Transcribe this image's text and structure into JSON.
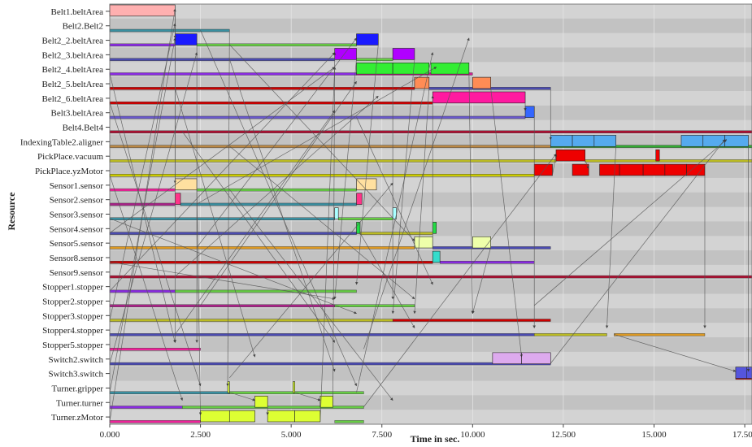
{
  "chart_data": {
    "type": "gantt",
    "xlabel": "Time in sec.",
    "ylabel": "Resource",
    "xlim": [
      0,
      17700
    ],
    "x_ticks": [
      0,
      2500,
      5000,
      7500,
      10000,
      12500,
      15000,
      17500
    ],
    "x_tick_labels": [
      "0.000",
      "2.500",
      "5.000",
      "7.500",
      "10.000",
      "12.500",
      "15.000",
      "17.500"
    ],
    "background": {
      "band_colors": [
        "#d3d3d3",
        "#c2c2c2"
      ],
      "grid": true
    },
    "resources": [
      "Belt1.beltArea",
      "Belt2.Belt2",
      "Belt2_2.beltArea",
      "Belt2_3.beltArea",
      "Belt2_4.beltArea",
      "Belt2_5.beltArea",
      "Belt2_6.beltArea",
      "Belt3.beltArea",
      "Belt4.Belt4",
      "IndexingTable2.aligner",
      "PickPlace.vacuum",
      "PickPlace.yzMotor",
      "Sensor1.sensor",
      "Sensor2.sensor",
      "Sensor3.sensor",
      "Sensor4.sensor",
      "Sensor5.sensor",
      "Sensor8.sensor",
      "Sensor9.sensor",
      "Stopper1.stopper",
      "Stopper2.stopper",
      "Stopper3.stopper",
      "Stopper4.stopper",
      "Stopper5.stopper",
      "Switch2.switch",
      "Switch3.switch",
      "Turner.gripper",
      "Turner.turner",
      "Turner.zMotor"
    ],
    "tasks": [
      {
        "r": 0,
        "s": 0,
        "e": 1800,
        "color": "#ffb0b0"
      },
      {
        "r": 2,
        "s": 1800,
        "e": 2400,
        "color": "#1a1aff"
      },
      {
        "r": 2,
        "s": 6800,
        "e": 7400,
        "color": "#1a1aff"
      },
      {
        "r": 3,
        "s": 6200,
        "e": 6800,
        "color": "#b000ff"
      },
      {
        "r": 3,
        "s": 7800,
        "e": 8400,
        "color": "#b000ff"
      },
      {
        "r": 4,
        "s": 6800,
        "e": 7800,
        "color": "#33ee33"
      },
      {
        "r": 4,
        "s": 7800,
        "e": 8800,
        "color": "#33ee33"
      },
      {
        "r": 4,
        "s": 8850,
        "e": 9900,
        "color": "#33ee33"
      },
      {
        "r": 5,
        "s": 8400,
        "e": 8800,
        "color": "#ff8c55"
      },
      {
        "r": 5,
        "s": 10000,
        "e": 10500,
        "color": "#ff8c55"
      },
      {
        "r": 6,
        "s": 8900,
        "e": 11450,
        "color": "#ff1aa0"
      },
      {
        "r": 7,
        "s": 11450,
        "e": 11700,
        "color": "#3366ff"
      },
      {
        "r": 9,
        "s": 12150,
        "e": 12750,
        "color": "#55aaee"
      },
      {
        "r": 9,
        "s": 12750,
        "e": 13350,
        "color": "#55aaee"
      },
      {
        "r": 9,
        "s": 13350,
        "e": 13950,
        "color": "#55aaee"
      },
      {
        "r": 9,
        "s": 15750,
        "e": 16350,
        "color": "#55aaee"
      },
      {
        "r": 9,
        "s": 16350,
        "e": 16950,
        "color": "#55aaee"
      },
      {
        "r": 9,
        "s": 16950,
        "e": 17600,
        "color": "#55aaee"
      },
      {
        "r": 10,
        "s": 12300,
        "e": 13100,
        "color": "#ee0000"
      },
      {
        "r": 10,
        "s": 15050,
        "e": 15150,
        "color": "#ee0000"
      },
      {
        "r": 11,
        "s": 11700,
        "e": 12200,
        "color": "#ee0000"
      },
      {
        "r": 11,
        "s": 12750,
        "e": 13200,
        "color": "#ee0000"
      },
      {
        "r": 11,
        "s": 13500,
        "e": 14050,
        "color": "#ee0000"
      },
      {
        "r": 11,
        "s": 14050,
        "e": 14700,
        "color": "#ee0000"
      },
      {
        "r": 11,
        "s": 14700,
        "e": 15300,
        "color": "#ee0000"
      },
      {
        "r": 11,
        "s": 15300,
        "e": 15900,
        "color": "#ee0000"
      },
      {
        "r": 11,
        "s": 15900,
        "e": 16400,
        "color": "#ee0000"
      },
      {
        "r": 12,
        "s": 1800,
        "e": 2400,
        "color": "#ffe0a0"
      },
      {
        "r": 12,
        "s": 6800,
        "e": 7350,
        "color": "#ffe0a0"
      },
      {
        "r": 13,
        "s": 1800,
        "e": 1950,
        "color": "#ff3388"
      },
      {
        "r": 13,
        "s": 6800,
        "e": 6950,
        "color": "#ff3388"
      },
      {
        "r": 14,
        "s": 6200,
        "e": 6300,
        "color": "#aaffff"
      },
      {
        "r": 14,
        "s": 7800,
        "e": 7900,
        "color": "#aaffff"
      },
      {
        "r": 15,
        "s": 6800,
        "e": 6900,
        "color": "#22dd44"
      },
      {
        "r": 15,
        "s": 8900,
        "e": 9000,
        "color": "#22dd44"
      },
      {
        "r": 16,
        "s": 8400,
        "e": 8900,
        "color": "#eeffaa"
      },
      {
        "r": 16,
        "s": 10000,
        "e": 10500,
        "color": "#eeffaa"
      },
      {
        "r": 17,
        "s": 8900,
        "e": 9100,
        "color": "#33ddcc"
      },
      {
        "r": 24,
        "s": 10550,
        "e": 11350,
        "color": "#ddaaee"
      },
      {
        "r": 24,
        "s": 11350,
        "e": 12150,
        "color": "#ddaaee"
      },
      {
        "r": 25,
        "s": 17250,
        "e": 17550,
        "color": "#5555dd"
      },
      {
        "r": 25,
        "s": 17550,
        "e": 17700,
        "color": "#5555dd"
      },
      {
        "r": 26,
        "s": 3250,
        "e": 3300,
        "color": "#ddff33"
      },
      {
        "r": 26,
        "s": 5050,
        "e": 5100,
        "color": "#ddff33"
      },
      {
        "r": 27,
        "s": 4000,
        "e": 4350,
        "color": "#ddff33"
      },
      {
        "r": 27,
        "s": 5800,
        "e": 6150,
        "color": "#ddff33"
      },
      {
        "r": 28,
        "s": 2500,
        "e": 3300,
        "color": "#ddff33"
      },
      {
        "r": 28,
        "s": 3300,
        "e": 4000,
        "color": "#ddff33"
      },
      {
        "r": 28,
        "s": 4350,
        "e": 5100,
        "color": "#ddff33"
      },
      {
        "r": 28,
        "s": 5100,
        "e": 5800,
        "color": "#ddff33"
      }
    ],
    "lines": [
      {
        "r": 1,
        "s": 0,
        "e": 3300,
        "color": "#3a8fa0"
      },
      {
        "r": 2,
        "s": 0,
        "e": 1800,
        "color": "#8a2be2"
      },
      {
        "r": 2,
        "s": 2400,
        "e": 6800,
        "color": "#66cc44"
      },
      {
        "r": 3,
        "s": 0,
        "e": 6200,
        "color": "#4b4bb0"
      },
      {
        "r": 3,
        "s": 6800,
        "e": 7800,
        "color": "#66cc44"
      },
      {
        "r": 4,
        "s": 0,
        "e": 6800,
        "color": "#8a2be2"
      },
      {
        "r": 4,
        "s": 6800,
        "e": 10000,
        "color": "#d02090"
      },
      {
        "r": 5,
        "s": 0,
        "e": 8400,
        "color": "#cc0000"
      },
      {
        "r": 5,
        "s": 8800,
        "e": 12150,
        "color": "#4b4bb0"
      },
      {
        "r": 6,
        "s": 0,
        "e": 8900,
        "color": "#cc0000"
      },
      {
        "r": 7,
        "s": 0,
        "e": 11450,
        "color": "#6a5acd"
      },
      {
        "r": 8,
        "s": 0,
        "e": 17700,
        "color": "#aa1133"
      },
      {
        "r": 9,
        "s": 0,
        "e": 12150,
        "color": "#bb8844"
      },
      {
        "r": 9,
        "s": 12150,
        "e": 17700,
        "color": "#33aa33"
      },
      {
        "r": 10,
        "s": 0,
        "e": 12300,
        "color": "#bbbb22"
      },
      {
        "r": 10,
        "s": 13100,
        "e": 17700,
        "color": "#bbbb22"
      },
      {
        "r": 11,
        "s": 0,
        "e": 11700,
        "color": "#cccc00"
      },
      {
        "r": 12,
        "s": 0,
        "e": 1800,
        "color": "#ee2299"
      },
      {
        "r": 12,
        "s": 2400,
        "e": 6800,
        "color": "#66cc44"
      },
      {
        "r": 13,
        "s": 0,
        "e": 1800,
        "color": "#aa2288"
      },
      {
        "r": 13,
        "s": 1950,
        "e": 6800,
        "color": "#3a8fa0"
      },
      {
        "r": 14,
        "s": 0,
        "e": 6200,
        "color": "#3a8fa0"
      },
      {
        "r": 14,
        "s": 6300,
        "e": 7800,
        "color": "#66cc44"
      },
      {
        "r": 15,
        "s": 0,
        "e": 6800,
        "color": "#4b4bb0"
      },
      {
        "r": 15,
        "s": 6900,
        "e": 8900,
        "color": "#bbbb22"
      },
      {
        "r": 16,
        "s": 0,
        "e": 8400,
        "color": "#dd9922"
      },
      {
        "r": 16,
        "s": 8900,
        "e": 12150,
        "color": "#4b4bb0"
      },
      {
        "r": 17,
        "s": 0,
        "e": 8900,
        "color": "#cc0000"
      },
      {
        "r": 17,
        "s": 9100,
        "e": 11700,
        "color": "#8a2be2"
      },
      {
        "r": 18,
        "s": 0,
        "e": 17700,
        "color": "#aa1133"
      },
      {
        "r": 19,
        "s": 0,
        "e": 1800,
        "color": "#8a2be2"
      },
      {
        "r": 19,
        "s": 1800,
        "e": 6800,
        "color": "#66cc44"
      },
      {
        "r": 20,
        "s": 0,
        "e": 6200,
        "color": "#aa2288"
      },
      {
        "r": 20,
        "s": 6200,
        "e": 8400,
        "color": "#66cc44"
      },
      {
        "r": 21,
        "s": 0,
        "e": 7800,
        "color": "#bbbb22"
      },
      {
        "r": 21,
        "s": 7800,
        "e": 12150,
        "color": "#cc0000"
      },
      {
        "r": 22,
        "s": 0,
        "e": 11700,
        "color": "#4b4bb0"
      },
      {
        "r": 22,
        "s": 11700,
        "e": 13700,
        "color": "#bbbb22"
      },
      {
        "r": 22,
        "s": 13900,
        "e": 16400,
        "color": "#dd9922"
      },
      {
        "r": 23,
        "s": 0,
        "e": 2500,
        "color": "#ee2299"
      },
      {
        "r": 24,
        "s": 0,
        "e": 12150,
        "color": "#4b4bb0"
      },
      {
        "r": 25,
        "s": 17250,
        "e": 17700,
        "color": "#cc0000"
      },
      {
        "r": 26,
        "s": 0,
        "e": 3300,
        "color": "#3a8fa0"
      },
      {
        "r": 26,
        "s": 3300,
        "e": 7000,
        "color": "#66cc44"
      },
      {
        "r": 27,
        "s": 0,
        "e": 2000,
        "color": "#8a2be2"
      },
      {
        "r": 27,
        "s": 2000,
        "e": 7000,
        "color": "#66cc44"
      },
      {
        "r": 28,
        "s": 0,
        "e": 2500,
        "color": "#ee2299"
      },
      {
        "r": 28,
        "s": 6200,
        "e": 7000,
        "color": "#66cc44"
      }
    ],
    "dependencies": [
      {
        "from": [
          0,
          1800
        ],
        "to": [
          2,
          1800
        ]
      },
      {
        "from": [
          0,
          1800
        ],
        "to": [
          12,
          1800
        ]
      },
      {
        "from": [
          0,
          1800
        ],
        "to": [
          23,
          1800
        ]
      },
      {
        "from": [
          2,
          2400
        ],
        "to": [
          23,
          2400
        ]
      },
      {
        "from": [
          12,
          2400
        ],
        "to": [
          28,
          2500
        ]
      },
      {
        "from": [
          1,
          3300
        ],
        "to": [
          26,
          3250
        ]
      },
      {
        "from": [
          26,
          3300
        ],
        "to": [
          27,
          4000
        ]
      },
      {
        "from": [
          27,
          4350
        ],
        "to": [
          28,
          4350
        ]
      },
      {
        "from": [
          26,
          5100
        ],
        "to": [
          27,
          5800
        ]
      },
      {
        "from": [
          28,
          5800
        ],
        "to": [
          4,
          6200
        ]
      },
      {
        "from": [
          27,
          6150
        ],
        "to": [
          3,
          6200
        ]
      },
      {
        "from": [
          3,
          6800
        ],
        "to": [
          20,
          6200
        ]
      },
      {
        "from": [
          2,
          7400
        ],
        "to": [
          19,
          6800
        ]
      },
      {
        "from": [
          3,
          8400
        ],
        "to": [
          21,
          7800
        ]
      },
      {
        "from": [
          4,
          7800
        ],
        "to": [
          20,
          7800
        ]
      },
      {
        "from": [
          5,
          8800
        ],
        "to": [
          21,
          8400
        ]
      },
      {
        "from": [
          4,
          9900
        ],
        "to": [
          21,
          10000
        ]
      },
      {
        "from": [
          16,
          8900
        ],
        "to": [
          6,
          8900
        ]
      },
      {
        "from": [
          6,
          11450
        ],
        "to": [
          7,
          11450
        ]
      },
      {
        "from": [
          5,
          10500
        ],
        "to": [
          24,
          11350
        ]
      },
      {
        "from": [
          16,
          10500
        ],
        "to": [
          21,
          10000
        ]
      },
      {
        "from": [
          7,
          11700
        ],
        "to": [
          22,
          11700
        ]
      },
      {
        "from": [
          5,
          12150
        ],
        "to": [
          9,
          12150
        ]
      },
      {
        "from": [
          9,
          13950
        ],
        "to": [
          22,
          13700
        ]
      },
      {
        "from": [
          11,
          16400
        ],
        "to": [
          22,
          16400
        ]
      },
      {
        "from": [
          9,
          17600
        ],
        "to": [
          25,
          17600
        ]
      },
      {
        "from": [
          22,
          13900
        ],
        "to": [
          25,
          17250
        ]
      },
      {
        "from": [
          24,
          12150
        ],
        "to": [
          9,
          16950
        ]
      },
      {
        "from": [
          20,
          11700
        ],
        "to": [
          9,
          17000
        ]
      },
      {
        "from": [
          11,
          12200
        ],
        "to": [
          10,
          12300
        ]
      },
      {
        "from": [
          10,
          13100
        ],
        "to": [
          11,
          13200
        ]
      },
      {
        "from": [
          15,
          0
        ],
        "to": [
          4,
          6200
        ]
      },
      {
        "from": [
          28,
          0
        ],
        "to": [
          0,
          1800
        ]
      },
      {
        "from": [
          26,
          0
        ],
        "to": [
          2,
          1800
        ]
      },
      {
        "from": [
          17,
          0
        ],
        "to": [
          20,
          6200
        ]
      },
      {
        "from": [
          19,
          0
        ],
        "to": [
          3,
          6200
        ]
      },
      {
        "from": [
          14,
          0
        ],
        "to": [
          21,
          6800
        ]
      },
      {
        "from": [
          11,
          0
        ],
        "to": [
          27,
          2000
        ]
      },
      {
        "from": [
          6,
          0
        ],
        "to": [
          26,
          2500
        ]
      },
      {
        "from": [
          4,
          0
        ],
        "to": [
          23,
          1800
        ]
      },
      {
        "from": [
          21,
          0
        ],
        "to": [
          1,
          1800
        ]
      },
      {
        "from": [
          24,
          0
        ],
        "to": [
          3,
          2400
        ]
      },
      {
        "from": [
          1,
          2500
        ],
        "to": [
          26,
          6800
        ]
      },
      {
        "from": [
          3,
          3300
        ],
        "to": [
          25,
          6200
        ]
      },
      {
        "from": [
          16,
          2400
        ],
        "to": [
          2,
          6800
        ]
      },
      {
        "from": [
          20,
          2500
        ],
        "to": [
          5,
          6800
        ]
      },
      {
        "from": [
          12,
          3300
        ],
        "to": [
          27,
          7800
        ]
      },
      {
        "from": [
          8,
          2000
        ],
        "to": [
          23,
          6200
        ]
      },
      {
        "from": [
          5,
          1800
        ],
        "to": [
          24,
          4000
        ]
      },
      {
        "from": [
          22,
          1800
        ],
        "to": [
          7,
          6200
        ]
      },
      {
        "from": [
          9,
          3300
        ],
        "to": [
          20,
          8400
        ]
      },
      {
        "from": [
          13,
          2400
        ],
        "to": [
          4,
          9000
        ]
      },
      {
        "from": [
          18,
          1800
        ],
        "to": [
          6,
          7400
        ]
      },
      {
        "from": [
          25,
          3300
        ],
        "to": [
          12,
          7800
        ]
      },
      {
        "from": [
          2,
          3300
        ],
        "to": [
          16,
          8400
        ]
      },
      {
        "from": [
          27,
          7000
        ],
        "to": [
          10,
          12300
        ]
      },
      {
        "from": [
          26,
          6800
        ],
        "to": [
          3,
          8900
        ]
      },
      {
        "from": [
          15,
          6900
        ],
        "to": [
          22,
          8400
        ]
      },
      {
        "from": [
          7,
          6800
        ],
        "to": [
          19,
          8900
        ]
      },
      {
        "from": [
          23,
          7000
        ],
        "to": [
          2,
          9900
        ]
      }
    ]
  }
}
